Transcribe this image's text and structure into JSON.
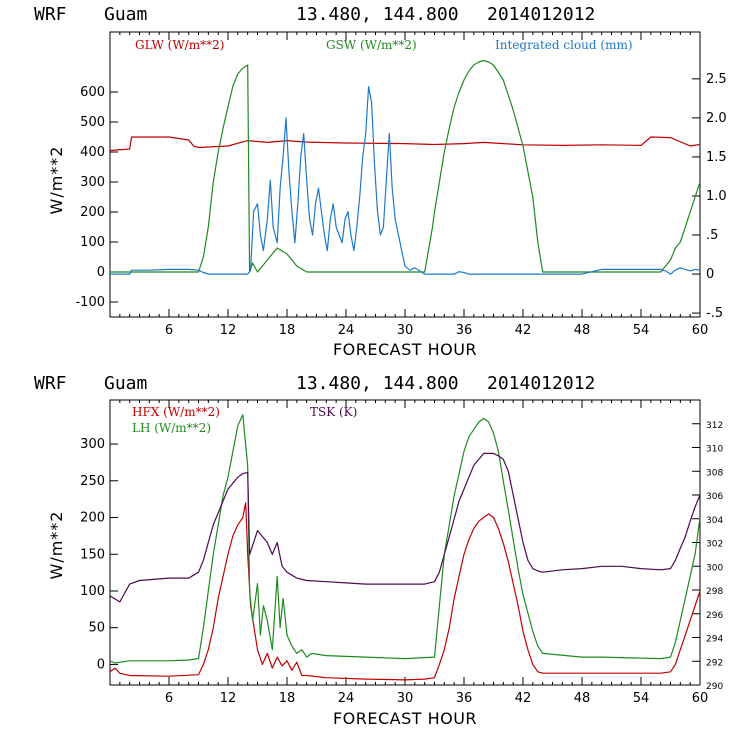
{
  "colors": {
    "red": "#c00000",
    "green": "#1f8a1f",
    "blue": "#1e78c8",
    "purple": "#4b0a50"
  },
  "chart_data": [
    {
      "type": "line",
      "header": {
        "model": "WRF",
        "location": "Guam",
        "coords": "13.480, 144.800",
        "init": "2014012012"
      },
      "xlabel": "FORECAST HOUR",
      "ylabel": "W/m**2",
      "xlim": [
        0,
        60
      ],
      "ylim": [
        -150,
        800
      ],
      "y2lim": [
        -0.55,
        3.1
      ],
      "x_ticks": [
        "6",
        "12",
        "18",
        "24",
        "30",
        "36",
        "42",
        "48",
        "54",
        "60"
      ],
      "y_ticks": [
        "-100",
        "0",
        "100",
        "200",
        "300",
        "400",
        "500",
        "600"
      ],
      "y2_ticks": [
        "-.5",
        "0",
        ".5",
        "1.0",
        "1.5",
        "2.0",
        "2.5"
      ],
      "legend": [
        "GLW (W/m**2)",
        "GSW (W/m**2)",
        "Integrated cloud (mm)"
      ],
      "series": [
        {
          "name": "GLW (W/m**2)",
          "axis": "left",
          "color": "#c00000",
          "x": [
            0,
            2,
            2.2,
            6,
            7,
            8,
            8.5,
            9,
            12,
            14,
            15,
            16,
            18,
            20,
            24,
            30,
            33,
            36,
            37,
            38,
            40,
            42,
            46,
            50,
            54,
            55,
            57,
            59,
            60
          ],
          "y": [
            405,
            410,
            450,
            450,
            445,
            440,
            420,
            415,
            420,
            438,
            435,
            432,
            438,
            433,
            430,
            428,
            425,
            428,
            430,
            432,
            428,
            424,
            422,
            424,
            422,
            450,
            448,
            420,
            425
          ]
        },
        {
          "name": "GSW (W/m**2)",
          "axis": "left",
          "color": "#1f8a1f",
          "x": [
            0,
            9,
            9.5,
            10,
            10.5,
            11,
            11.5,
            12,
            12.5,
            13,
            13.5,
            14,
            14.2,
            14.5,
            15,
            17,
            18,
            18.5,
            19,
            20,
            22,
            26,
            32,
            32.8,
            33,
            33.5,
            34,
            34.5,
            35,
            35.5,
            36,
            36.5,
            37,
            37.5,
            38,
            38.5,
            39,
            40,
            41,
            42,
            43,
            43.5,
            44,
            48,
            56,
            57,
            57.5,
            58,
            58.5,
            59,
            59.5,
            60
          ],
          "y": [
            0,
            0,
            50,
            150,
            300,
            400,
            480,
            550,
            620,
            660,
            680,
            690,
            0,
            30,
            0,
            80,
            60,
            40,
            20,
            0,
            0,
            0,
            0,
            150,
            200,
            300,
            400,
            480,
            550,
            600,
            640,
            670,
            690,
            700,
            705,
            700,
            690,
            640,
            540,
            420,
            250,
            100,
            0,
            0,
            0,
            40,
            80,
            100,
            150,
            200,
            250,
            300
          ]
        },
        {
          "name": "Integrated cloud (mm)",
          "axis": "right",
          "color": "#1e78c8",
          "x": [
            0,
            2,
            2.2,
            4,
            6,
            8,
            9,
            9.5,
            10,
            12,
            14,
            14.3,
            14.6,
            15,
            15.3,
            15.6,
            16,
            16.3,
            16.6,
            17,
            17.3,
            17.6,
            17.9,
            18.2,
            18.5,
            18.8,
            19.1,
            19.4,
            19.7,
            20,
            20.3,
            20.6,
            20.9,
            21.2,
            21.5,
            21.8,
            22.1,
            22.4,
            22.7,
            23,
            23.3,
            23.6,
            23.9,
            24.2,
            24.5,
            24.8,
            25.1,
            25.4,
            25.7,
            26,
            26.3,
            26.6,
            26.9,
            27.2,
            27.5,
            27.8,
            28.1,
            28.4,
            28.7,
            29,
            29.5,
            30,
            30.5,
            31,
            32,
            35,
            35.5,
            36,
            36.5,
            37,
            40,
            48,
            49,
            50,
            52,
            56,
            56.5,
            57,
            57.5,
            58,
            58.5,
            59,
            59.5,
            60
          ],
          "y": [
            0,
            0,
            0.05,
            0.05,
            0.06,
            0.06,
            0.05,
            0.02,
            0,
            0,
            0,
            0.05,
            0.8,
            0.9,
            0.5,
            0.3,
            0.7,
            1.2,
            0.6,
            0.4,
            1.1,
            1.5,
            2.0,
            1.3,
            0.8,
            0.4,
            0.9,
            1.5,
            1.8,
            1.2,
            0.7,
            0.5,
            0.9,
            1.1,
            0.8,
            0.5,
            0.3,
            0.7,
            0.9,
            0.6,
            0.5,
            0.4,
            0.7,
            0.8,
            0.5,
            0.3,
            0.6,
            1.0,
            1.5,
            1.8,
            2.4,
            2.2,
            1.4,
            0.8,
            0.5,
            0.6,
            1.2,
            1.8,
            1.1,
            0.7,
            0.4,
            0.1,
            0.05,
            0.08,
            0,
            0,
            0.03,
            0.02,
            0,
            0,
            0,
            0,
            0.03,
            0.06,
            0.06,
            0.06,
            0.04,
            0,
            0.05,
            0.08,
            0.06,
            0.04,
            0.06,
            0.05
          ]
        }
      ]
    },
    {
      "type": "line",
      "header": {
        "model": "WRF",
        "location": "Guam",
        "coords": "13.480, 144.800",
        "init": "2014012012"
      },
      "xlabel": "FORECAST HOUR",
      "ylabel": "W/m**2",
      "xlim": [
        0,
        60
      ],
      "ylim": [
        -28,
        360
      ],
      "y2lim": [
        290,
        314
      ],
      "x_ticks": [
        "6",
        "12",
        "18",
        "24",
        "30",
        "36",
        "42",
        "48",
        "54",
        "60"
      ],
      "y_ticks": [
        "0",
        "50",
        "100",
        "150",
        "200",
        "250",
        "300"
      ],
      "y2_ticks": [
        "290",
        "292",
        "294",
        "296",
        "298",
        "300",
        "302",
        "304",
        "306",
        "308",
        "310",
        "312"
      ],
      "legend": [
        "HFX (W/m**2)",
        "LH (W/m**2)",
        "TSK (K)"
      ],
      "series": [
        {
          "name": "HFX (W/m**2)",
          "axis": "left",
          "color": "#c00000",
          "x": [
            0,
            0.5,
            1,
            2,
            6,
            9,
            9.5,
            10,
            10.5,
            11,
            11.5,
            12,
            12.5,
            13,
            13.5,
            13.8,
            14,
            14.3,
            15,
            15.5,
            16,
            16.5,
            17,
            17.5,
            18,
            18.5,
            19,
            19.5,
            20,
            22,
            26,
            30,
            32,
            33,
            33.5,
            34,
            34.5,
            35,
            35.5,
            36,
            36.5,
            37,
            37.5,
            38,
            38.5,
            39,
            39.5,
            40,
            40.5,
            41,
            41.5,
            42,
            42.5,
            43,
            43.5,
            44,
            50,
            56,
            57,
            57.5,
            58,
            58.5,
            59,
            59.5,
            60
          ],
          "y": [
            -10,
            -5,
            -12,
            -15,
            -16,
            -14,
            0,
            20,
            50,
            90,
            120,
            150,
            175,
            190,
            200,
            220,
            150,
            80,
            20,
            0,
            15,
            -5,
            10,
            -2,
            5,
            -8,
            3,
            -15,
            -15,
            -18,
            -20,
            -21,
            -20,
            -18,
            0,
            20,
            50,
            90,
            120,
            150,
            170,
            185,
            195,
            200,
            205,
            200,
            185,
            165,
            140,
            110,
            80,
            45,
            20,
            0,
            -10,
            -12,
            -12,
            -12,
            -10,
            0,
            20,
            40,
            60,
            80,
            100
          ]
        },
        {
          "name": "LH (W/m**2)",
          "axis": "left",
          "color": "#1f8a1f",
          "x": [
            0,
            0.5,
            2,
            6,
            8,
            9,
            9.5,
            10,
            10.5,
            11,
            11.5,
            12,
            12.5,
            13,
            13.5,
            14,
            14.2,
            14.5,
            15,
            15.3,
            15.6,
            16,
            16.5,
            17,
            17.3,
            17.6,
            18,
            18.5,
            19,
            19.5,
            20,
            20.5,
            22,
            26,
            30,
            33,
            33.5,
            34,
            34.5,
            35,
            35.5,
            36,
            36.5,
            37,
            37.5,
            38,
            38.5,
            39,
            39.5,
            40,
            40.5,
            41,
            41.5,
            42,
            42.5,
            43,
            43.5,
            44,
            48,
            50,
            56,
            57,
            57.5,
            58,
            58.5,
            59,
            59.5,
            60
          ],
          "y": [
            5,
            2,
            5,
            5,
            6,
            8,
            50,
            100,
            150,
            190,
            230,
            255,
            290,
            325,
            340,
            270,
            100,
            60,
            110,
            40,
            80,
            60,
            20,
            120,
            50,
            90,
            40,
            25,
            15,
            20,
            10,
            15,
            12,
            10,
            8,
            10,
            80,
            150,
            190,
            230,
            260,
            290,
            310,
            320,
            330,
            335,
            330,
            315,
            290,
            250,
            210,
            170,
            130,
            95,
            70,
            45,
            25,
            15,
            10,
            10,
            8,
            10,
            30,
            60,
            90,
            120,
            150,
            200
          ]
        },
        {
          "name": "TSK (K)",
          "axis": "right",
          "color": "#4b0a50",
          "x": [
            0,
            1,
            2,
            3,
            6,
            8,
            9,
            9.5,
            10,
            10.5,
            11,
            11.5,
            12,
            12.5,
            13,
            13.5,
            14,
            14.2,
            14.6,
            15,
            16,
            16.5,
            17,
            17.5,
            18,
            19,
            20,
            22,
            24,
            26,
            30,
            32,
            33,
            33.5,
            34,
            34.5,
            35,
            35.5,
            36,
            36.5,
            37,
            37.5,
            38,
            38.5,
            39,
            39.5,
            40,
            40.5,
            41,
            41.5,
            42,
            42.5,
            43,
            43.5,
            44,
            46,
            48,
            50,
            52,
            54,
            56,
            57,
            57.5,
            58,
            58.5,
            59,
            59.5,
            60
          ],
          "y": [
            297.5,
            297,
            298.5,
            298.8,
            299,
            299,
            299.5,
            300.5,
            302,
            303.5,
            304.5,
            305.5,
            306.5,
            307,
            307.5,
            307.8,
            307.9,
            301,
            302,
            303,
            302,
            301,
            302,
            300,
            299.5,
            299,
            298.8,
            298.7,
            298.6,
            298.5,
            298.5,
            298.5,
            298.7,
            299.5,
            301,
            302.5,
            304,
            305.5,
            306.5,
            307.5,
            308.5,
            309,
            309.5,
            309.5,
            309.5,
            309.3,
            309,
            308,
            306,
            304,
            302,
            300.5,
            299.8,
            299.6,
            299.5,
            299.7,
            299.8,
            300,
            300,
            299.8,
            299.7,
            299.8,
            300.5,
            301.5,
            302.5,
            303.8,
            305,
            306
          ]
        }
      ]
    }
  ]
}
